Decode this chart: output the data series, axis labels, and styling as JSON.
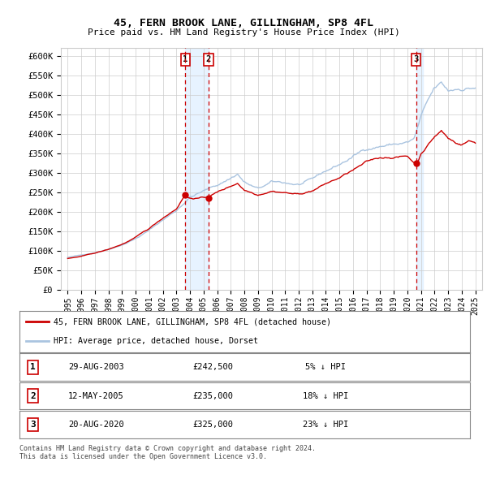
{
  "title1": "45, FERN BROOK LANE, GILLINGHAM, SP8 4FL",
  "title2": "Price paid vs. HM Land Registry's House Price Index (HPI)",
  "ylabel_ticks": [
    "£0",
    "£50K",
    "£100K",
    "£150K",
    "£200K",
    "£250K",
    "£300K",
    "£350K",
    "£400K",
    "£450K",
    "£500K",
    "£550K",
    "£600K"
  ],
  "ytick_values": [
    0,
    50000,
    100000,
    150000,
    200000,
    250000,
    300000,
    350000,
    400000,
    450000,
    500000,
    550000,
    600000
  ],
  "xlim": [
    1994.5,
    2025.5
  ],
  "ylim": [
    0,
    620000
  ],
  "sale_dates": [
    2003.66,
    2005.36,
    2020.64
  ],
  "sale_prices": [
    242500,
    235000,
    325000
  ],
  "sale_labels": [
    "1",
    "2",
    "3"
  ],
  "legend_red": "45, FERN BROOK LANE, GILLINGHAM, SP8 4FL (detached house)",
  "legend_blue": "HPI: Average price, detached house, Dorset",
  "table_data": [
    [
      "1",
      "29-AUG-2003",
      "£242,500",
      "5% ↓ HPI"
    ],
    [
      "2",
      "12-MAY-2005",
      "£235,000",
      "18% ↓ HPI"
    ],
    [
      "3",
      "20-AUG-2020",
      "£325,000",
      "23% ↓ HPI"
    ]
  ],
  "footer": "Contains HM Land Registry data © Crown copyright and database right 2024.\nThis data is licensed under the Open Government Licence v3.0.",
  "hpi_color": "#aac4e0",
  "price_color": "#cc0000",
  "marker_box_color": "#cc0000",
  "grid_color": "#cccccc",
  "background_color": "#ffffff",
  "shade_color": "#ddeeff"
}
